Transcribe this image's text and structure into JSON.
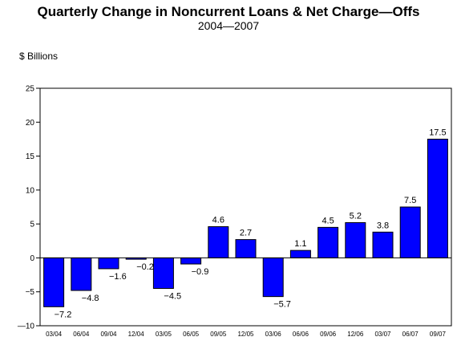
{
  "chart_data": {
    "type": "bar",
    "title": "Quarterly Change in Noncurrent Loans & Net Charge—Offs",
    "subtitle": "2004—2007",
    "ylabel": "$ Billions",
    "xlabel": "",
    "ylim": [
      -10,
      25
    ],
    "yticks": [
      -10,
      -5,
      0,
      5,
      10,
      15,
      20,
      25
    ],
    "ytick_labels": [
      "—10",
      "−5",
      "0",
      "5",
      "10",
      "15",
      "20",
      "25"
    ],
    "grid": false,
    "bar_color": "#0000ff",
    "categories": [
      "03/04",
      "06/04",
      "09/04",
      "12/04",
      "03/05",
      "06/05",
      "09/05",
      "12/05",
      "03/06",
      "06/06",
      "09/06",
      "12/06",
      "03/07",
      "06/07",
      "09/07"
    ],
    "values": [
      -7.2,
      -4.8,
      -1.6,
      -0.2,
      -4.5,
      -0.9,
      4.6,
      2.7,
      -5.7,
      1.1,
      4.5,
      5.2,
      3.8,
      7.5,
      17.5
    ],
    "data_labels": [
      "−7.2",
      "−4.8",
      "−1.6",
      "−0.2",
      "−4.5",
      "−0.9",
      "4.6",
      "2.7",
      "−5.7",
      "1.1",
      "4.5",
      "5.2",
      "3.8",
      "7.5",
      "17.5"
    ]
  }
}
